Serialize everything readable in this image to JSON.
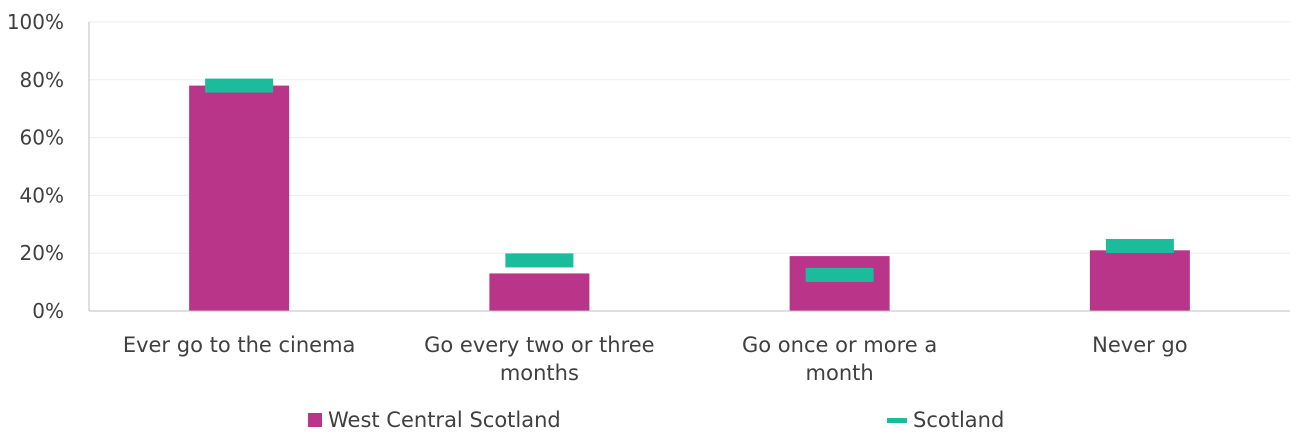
{
  "colors": {
    "west_central": "#B8358A",
    "scotland": "#1ABC9C",
    "grid": "#EDEDED",
    "axis": "#BFBFBF",
    "text": "#404040"
  },
  "chart_data": {
    "type": "bar",
    "categories": [
      [
        "Ever go to the cinema"
      ],
      [
        "Go every two or three",
        "months"
      ],
      [
        "Go once or more a",
        "month"
      ],
      [
        "Never go"
      ]
    ],
    "series": [
      {
        "name": "West Central Scotland",
        "kind": "bar",
        "values": [
          78,
          13,
          19,
          21
        ]
      },
      {
        "name": "Scotland",
        "kind": "marker",
        "values": [
          78,
          17.5,
          12.5,
          22.5
        ]
      }
    ],
    "ylim": [
      0,
      100
    ],
    "yticks": [
      "0%",
      "20%",
      "40%",
      "60%",
      "80%",
      "100%"
    ],
    "ytick_values": [
      0,
      20,
      40,
      60,
      80,
      100
    ],
    "grid": true,
    "legend_position": "bottom",
    "title": "",
    "xlabel": "",
    "ylabel": ""
  },
  "legend": {
    "series1": "West Central Scotland",
    "series2": "Scotland"
  }
}
